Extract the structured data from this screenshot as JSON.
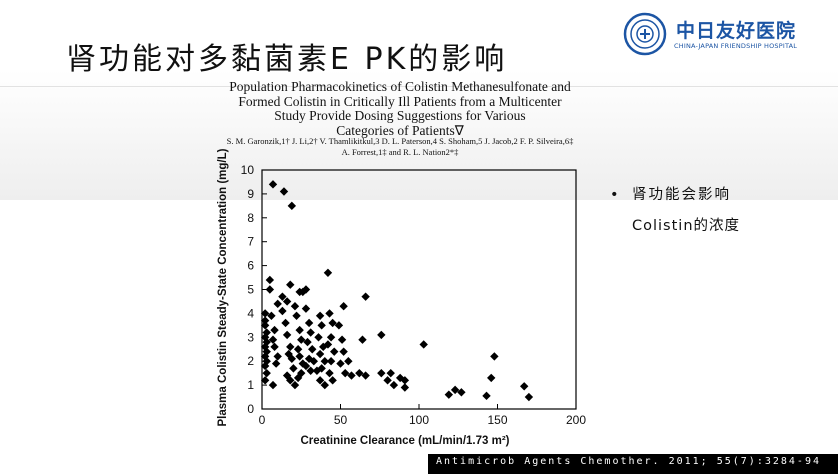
{
  "slide": {
    "title": "肾功能对多黏菌素E PK的影响",
    "logo": {
      "name": "中日友好医院",
      "subtitle": "CHINA-JAPAN FRIENDSHIP HOSPITAL",
      "icon": "hospital-seal-icon"
    }
  },
  "paper": {
    "title_lines": [
      "Population Pharmacokinetics of Colistin Methanesulfonate and",
      "Formed Colistin in Critically Ill Patients from a Multicenter",
      "Study Provide Dosing Suggestions for Various",
      "Categories of Patients∇"
    ],
    "author_lines": [
      "S. M. Garonzik,1† J. Li,2† V. Thamlikitkul,3 D. L. Paterson,4 S. Shoham,5 J. Jacob,2 F. P. Silveira,6‡",
      "A. Forrest,1‡ and R. L. Nation2*‡"
    ]
  },
  "bullets": {
    "marker": "•",
    "line1": "肾功能会影响",
    "line2": "Colistin的浓度"
  },
  "reference": "Antimicrob Agents Chemother. 2011; 55(7):3284-94",
  "chart_data": {
    "type": "scatter",
    "xlabel": "Creatinine Clearance (mL/min/1.73 m²)",
    "ylabel": "Plasma Colistin Steady-State Concentration (mg/L)",
    "xlim": [
      0,
      200
    ],
    "ylim": [
      0,
      10
    ],
    "xticks": [
      0,
      50,
      100,
      150,
      200
    ],
    "yticks": [
      0,
      1,
      2,
      3,
      4,
      5,
      6,
      7,
      8,
      9,
      10
    ],
    "marker": "diamond",
    "color": "#000000",
    "grid": false,
    "points": [
      [
        7,
        9.4
      ],
      [
        14,
        9.1
      ],
      [
        19,
        8.5
      ],
      [
        5,
        5.4
      ],
      [
        5,
        5.0
      ],
      [
        10,
        4.4
      ],
      [
        13,
        4.7
      ],
      [
        18,
        5.2
      ],
      [
        16,
        4.5
      ],
      [
        21,
        4.3
      ],
      [
        24,
        4.9
      ],
      [
        26,
        4.9
      ],
      [
        28,
        5.0
      ],
      [
        42,
        5.7
      ],
      [
        52,
        4.3
      ],
      [
        66,
        4.7
      ],
      [
        2,
        4.0
      ],
      [
        2,
        3.7
      ],
      [
        2,
        3.5
      ],
      [
        3,
        3.2
      ],
      [
        2,
        3.0
      ],
      [
        3,
        2.8
      ],
      [
        2,
        2.6
      ],
      [
        3,
        2.4
      ],
      [
        2,
        2.2
      ],
      [
        3,
        2.0
      ],
      [
        2,
        1.8
      ],
      [
        3,
        1.5
      ],
      [
        2,
        1.2
      ],
      [
        6,
        3.9
      ],
      [
        8,
        3.3
      ],
      [
        7,
        2.9
      ],
      [
        8,
        2.6
      ],
      [
        10,
        2.2
      ],
      [
        9,
        1.9
      ],
      [
        7,
        1.0
      ],
      [
        13,
        4.1
      ],
      [
        15,
        3.6
      ],
      [
        16,
        3.1
      ],
      [
        18,
        2.6
      ],
      [
        17,
        2.3
      ],
      [
        19,
        2.1
      ],
      [
        20,
        1.7
      ],
      [
        16,
        1.4
      ],
      [
        18,
        1.2
      ],
      [
        21,
        1.0
      ],
      [
        22,
        3.9
      ],
      [
        24,
        3.3
      ],
      [
        25,
        2.9
      ],
      [
        23,
        2.5
      ],
      [
        24,
        2.2
      ],
      [
        26,
        1.9
      ],
      [
        25,
        1.5
      ],
      [
        23,
        1.3
      ],
      [
        28,
        4.2
      ],
      [
        30,
        3.6
      ],
      [
        31,
        3.2
      ],
      [
        29,
        2.8
      ],
      [
        32,
        2.5
      ],
      [
        30,
        2.1
      ],
      [
        28,
        1.8
      ],
      [
        31,
        1.6
      ],
      [
        33,
        2.0
      ],
      [
        35,
        1.6
      ],
      [
        37,
        3.9
      ],
      [
        38,
        3.5
      ],
      [
        36,
        3.0
      ],
      [
        39,
        2.6
      ],
      [
        37,
        2.3
      ],
      [
        40,
        2.0
      ],
      [
        38,
        1.7
      ],
      [
        37,
        1.2
      ],
      [
        40,
        1.0
      ],
      [
        43,
        4.0
      ],
      [
        45,
        3.6
      ],
      [
        44,
        3.0
      ],
      [
        42,
        2.7
      ],
      [
        46,
        2.4
      ],
      [
        44,
        2.0
      ],
      [
        43,
        1.5
      ],
      [
        45,
        1.2
      ],
      [
        49,
        3.5
      ],
      [
        51,
        2.9
      ],
      [
        52,
        2.4
      ],
      [
        50,
        1.9
      ],
      [
        53,
        1.5
      ],
      [
        55,
        2.0
      ],
      [
        57,
        1.4
      ],
      [
        62,
        1.5
      ],
      [
        64,
        2.9
      ],
      [
        66,
        1.4
      ],
      [
        76,
        3.1
      ],
      [
        76,
        1.5
      ],
      [
        80,
        1.2
      ],
      [
        82,
        1.5
      ],
      [
        84,
        1.0
      ],
      [
        88,
        1.3
      ],
      [
        91,
        1.2
      ],
      [
        91,
        0.9
      ],
      [
        103,
        2.7
      ],
      [
        119,
        0.6
      ],
      [
        123,
        0.8
      ],
      [
        127,
        0.7
      ],
      [
        143,
        0.55
      ],
      [
        146,
        1.3
      ],
      [
        148,
        2.2
      ],
      [
        167,
        0.95
      ],
      [
        170,
        0.5
      ]
    ]
  }
}
